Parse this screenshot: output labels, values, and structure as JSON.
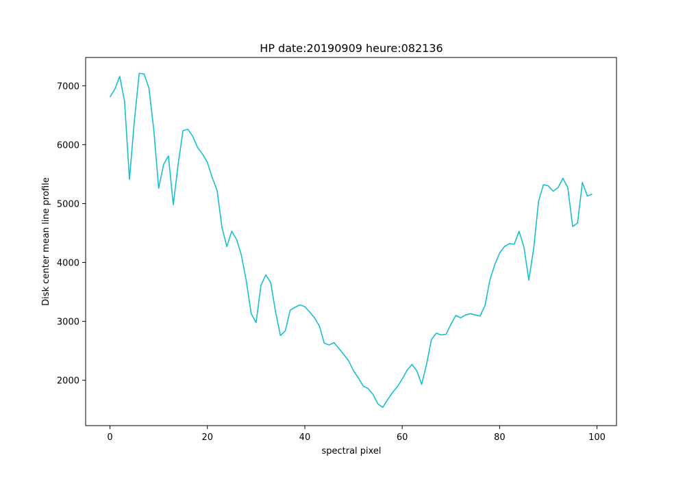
{
  "chart_data": {
    "type": "line",
    "title": "HP date:20190909 heure:082136",
    "xlabel": "spectral pixel",
    "ylabel": "Disk center mean line profile",
    "xlim": [
      -5,
      104
    ],
    "ylim": [
      1230,
      7480
    ],
    "grid": false,
    "legend": "none",
    "xticks": [
      0,
      20,
      40,
      60,
      80,
      100
    ],
    "yticks": [
      2000,
      3000,
      4000,
      5000,
      6000,
      7000
    ],
    "series": [
      {
        "color": "#17becf",
        "x": [
          0,
          1,
          2,
          3,
          4,
          5,
          6,
          7,
          8,
          9,
          10,
          11,
          12,
          13,
          14,
          15,
          16,
          17,
          18,
          19,
          20,
          21,
          22,
          23,
          24,
          25,
          26,
          27,
          28,
          29,
          30,
          31,
          32,
          33,
          34,
          35,
          36,
          37,
          38,
          39,
          40,
          41,
          42,
          43,
          44,
          45,
          46,
          47,
          48,
          49,
          50,
          51,
          52,
          53,
          54,
          55,
          56,
          57,
          58,
          59,
          60,
          61,
          62,
          63,
          64,
          65,
          66,
          67,
          68,
          69,
          70,
          71,
          72,
          73,
          74,
          75,
          76,
          77,
          78,
          79,
          80,
          81,
          82,
          83,
          84,
          85,
          86,
          87,
          88,
          89,
          90,
          91,
          92,
          93,
          94,
          95,
          96,
          97,
          98,
          99
        ],
        "y": [
          6810,
          6940,
          7160,
          6730,
          5410,
          6400,
          7210,
          7200,
          6960,
          6250,
          5260,
          5660,
          5810,
          4980,
          5670,
          6240,
          6260,
          6140,
          5950,
          5840,
          5700,
          5440,
          5220,
          4590,
          4270,
          4530,
          4390,
          4120,
          3680,
          3130,
          2980,
          3610,
          3790,
          3660,
          3160,
          2760,
          2840,
          3190,
          3240,
          3280,
          3250,
          3160,
          3060,
          2920,
          2630,
          2600,
          2640,
          2540,
          2440,
          2330,
          2160,
          2040,
          1900,
          1860,
          1760,
          1600,
          1540,
          1670,
          1790,
          1890,
          2020,
          2170,
          2270,
          2160,
          1930,
          2270,
          2690,
          2800,
          2770,
          2780,
          2950,
          3100,
          3060,
          3110,
          3130,
          3110,
          3090,
          3270,
          3700,
          3960,
          4160,
          4270,
          4320,
          4310,
          4530,
          4260,
          3700,
          4240,
          5040,
          5320,
          5300,
          5210,
          5270,
          5430,
          5270,
          4610,
          4670,
          5360,
          5130,
          5160
        ]
      }
    ]
  }
}
